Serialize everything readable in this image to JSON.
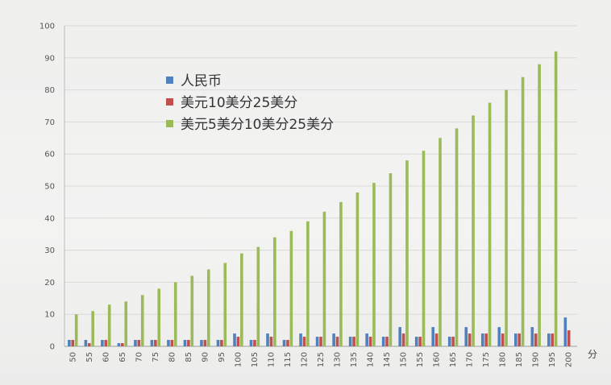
{
  "chart_data": {
    "type": "bar",
    "categories": [
      "50",
      "55",
      "60",
      "65",
      "70",
      "75",
      "80",
      "85",
      "90",
      "95",
      "100",
      "105",
      "110",
      "115",
      "120",
      "125",
      "130",
      "135",
      "140",
      "145",
      "150",
      "155",
      "160",
      "165",
      "170",
      "175",
      "180",
      "185",
      "190",
      "195",
      "200"
    ],
    "series": [
      {
        "name": "人民币",
        "color": "#4f81bd",
        "values": [
          2,
          2,
          2,
          1,
          2,
          2,
          2,
          2,
          2,
          2,
          4,
          2,
          4,
          2,
          4,
          3,
          4,
          3,
          4,
          3,
          6,
          3,
          6,
          3,
          6,
          4,
          6,
          4,
          6,
          4,
          9
        ]
      },
      {
        "name": "美元10美分25美分",
        "color": "#c0504d",
        "values": [
          2,
          1,
          2,
          1,
          2,
          2,
          2,
          2,
          2,
          2,
          3,
          2,
          3,
          2,
          3,
          3,
          3,
          3,
          3,
          3,
          4,
          3,
          4,
          3,
          4,
          4,
          4,
          4,
          4,
          4,
          5
        ]
      },
      {
        "name": "美元5美分10美分25美分",
        "color": "#9bbb59",
        "values": [
          10,
          11,
          13,
          14,
          16,
          18,
          20,
          22,
          24,
          26,
          29,
          31,
          34,
          36,
          39,
          42,
          45,
          48,
          51,
          54,
          58,
          61,
          65,
          68,
          72,
          76,
          80,
          84,
          88,
          92,
          null
        ]
      }
    ],
    "yticks": [
      "0",
      "10",
      "20",
      "30",
      "40",
      "50",
      "60",
      "70",
      "80",
      "90",
      "100"
    ],
    "ylim": [
      0,
      100
    ],
    "grid": true,
    "legend_position": "upper-left-inside",
    "x_unit_label": "分"
  }
}
